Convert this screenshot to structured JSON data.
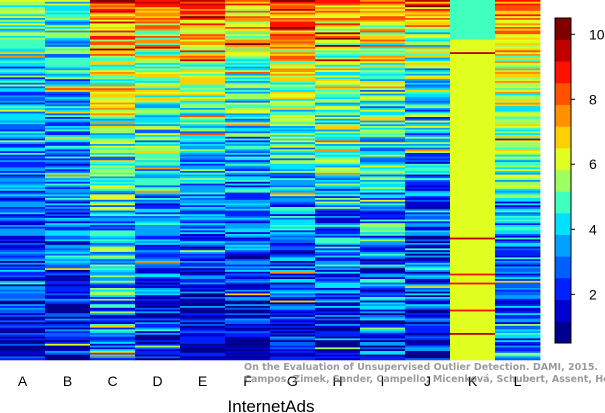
{
  "chart_data": {
    "type": "heatmap",
    "title": "",
    "xlabel": "InternetAds",
    "ylabel": "",
    "categories": [
      "A",
      "B",
      "C",
      "D",
      "E",
      "F",
      "G",
      "H",
      "I",
      "J",
      "K",
      "L"
    ],
    "color_scale": {
      "min": 0.5,
      "max": 10.5,
      "ticks": [
        2,
        4,
        6,
        8,
        10
      ],
      "colors": [
        "#00008f",
        "#0000cf",
        "#0020ff",
        "#0060ff",
        "#00a0ff",
        "#00e0ff",
        "#40ffbf",
        "#a0ff60",
        "#e0ff20",
        "#ffd000",
        "#ff9000",
        "#ff5000",
        "#ff1000",
        "#c00000",
        "#800000"
      ]
    },
    "rows": 200,
    "column_profiles": [
      {
        "column": "A",
        "top_level": 5.5,
        "bottom_level": 1.8,
        "noise": 1.6,
        "bands": []
      },
      {
        "column": "B",
        "top_level": 5.0,
        "bottom_level": 2.0,
        "noise": 1.8,
        "bands": []
      },
      {
        "column": "C",
        "top_level": 8.5,
        "bottom_level": 3.0,
        "noise": 2.0,
        "bands": []
      },
      {
        "column": "D",
        "top_level": 8.5,
        "bottom_level": 1.5,
        "noise": 1.8,
        "bands": []
      },
      {
        "column": "E",
        "top_level": 9.0,
        "bottom_level": 1.2,
        "noise": 1.6,
        "bands": []
      },
      {
        "column": "F",
        "top_level": 8.0,
        "bottom_level": 1.3,
        "noise": 1.8,
        "bands": []
      },
      {
        "column": "G",
        "top_level": 9.0,
        "bottom_level": 1.5,
        "noise": 1.8,
        "bands": []
      },
      {
        "column": "H",
        "top_level": 8.5,
        "bottom_level": 2.0,
        "noise": 2.0,
        "bands": []
      },
      {
        "column": "I",
        "top_level": 8.0,
        "bottom_level": 2.0,
        "noise": 2.2,
        "bands": []
      },
      {
        "column": "J",
        "top_level": 7.5,
        "bottom_level": 1.5,
        "noise": 2.2,
        "bands": []
      },
      {
        "column": "K",
        "top_level": 6.2,
        "bottom_level": 6.2,
        "noise": 0.2,
        "bands": [
          {
            "from": 0,
            "to": 22,
            "level": 4.5
          }
        ]
      },
      {
        "column": "L",
        "top_level": 8.5,
        "bottom_level": 3.0,
        "noise": 1.6,
        "bands": [
          {
            "from": 110,
            "to": 200,
            "level": 3.0
          }
        ]
      }
    ]
  },
  "watermark": {
    "line1": "On the Evaluation of Unsupervised Outlier Detection. DAMI, 2015.",
    "line2": "Campos, Zimek, Sander, Campello, Micenková, Schubert, Assent, Houle"
  }
}
